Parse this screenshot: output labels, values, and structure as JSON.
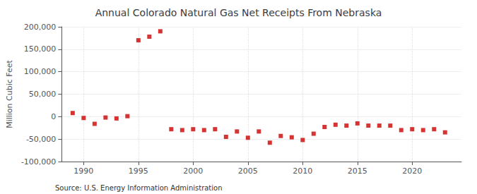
{
  "chart_data": {
    "type": "scatter",
    "title": "Annual Colorado Natural Gas Net Receipts From Nebraska",
    "ylabel": "Million Cubic Feet",
    "annotations": [
      "Source: U.S. Energy Information Administration"
    ],
    "x": [
      1989,
      1990,
      1991,
      1992,
      1993,
      1994,
      1995,
      1996,
      1997,
      1998,
      1999,
      2000,
      2001,
      2002,
      2003,
      2004,
      2005,
      2006,
      2007,
      2008,
      2009,
      2010,
      2011,
      2012,
      2013,
      2014,
      2015,
      2016,
      2017,
      2018,
      2019,
      2020,
      2021,
      2022,
      2023
    ],
    "values": [
      8000,
      -3000,
      -16000,
      -2000,
      -4000,
      1000,
      170000,
      178000,
      190000,
      -28000,
      -30000,
      -28000,
      -30000,
      -28000,
      -45000,
      -33000,
      -47000,
      -33000,
      -58000,
      -43000,
      -46000,
      -52000,
      -38000,
      -23000,
      -18000,
      -20000,
      -15000,
      -20000,
      -20000,
      -20000,
      -30000,
      -28000,
      -30000,
      -28000,
      -35000
    ],
    "color": "#cc0000",
    "marker": "square",
    "xlim": [
      1988.0,
      2024.5
    ],
    "xticks": [
      1990,
      1995,
      2000,
      2005,
      2010,
      2015,
      2020
    ],
    "ylim": [
      -100000,
      200000
    ],
    "yticks": [
      {
        "value": -100000,
        "label": "-100,000"
      },
      {
        "value": -50000,
        "label": "-50,000"
      },
      0,
      {
        "value": 50000,
        "label": "50,000"
      },
      {
        "value": 100000,
        "label": "100,000"
      },
      {
        "value": 150000,
        "label": "150,000"
      },
      {
        "value": 200000,
        "label": "200,000"
      }
    ],
    "grid": true
  }
}
